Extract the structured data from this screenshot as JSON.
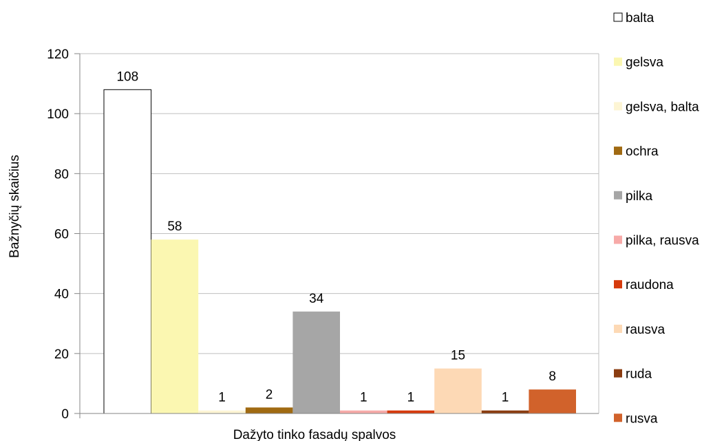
{
  "chart_data": {
    "type": "bar",
    "title": "",
    "xlabel": "Dažyto tinko fasadų spalvos",
    "ylabel": "Bažnyčių skaičius",
    "ylim": [
      0,
      120
    ],
    "yticks": [
      0,
      20,
      40,
      60,
      80,
      100,
      120
    ],
    "grid": true,
    "legend_position": "right",
    "series": [
      {
        "name": "balta",
        "value": 108,
        "color": "#ffffff"
      },
      {
        "name": "gelsva",
        "value": 58,
        "color": "#fbf7b1"
      },
      {
        "name": "gelsva, balta",
        "value": 1,
        "color": "#fdf5d4"
      },
      {
        "name": "ochra",
        "value": 2,
        "color": "#a06a12"
      },
      {
        "name": "pilka",
        "value": 34,
        "color": "#a6a6a6"
      },
      {
        "name": "pilka, rausva",
        "value": 1,
        "color": "#f7aaa8"
      },
      {
        "name": "raudona",
        "value": 1,
        "color": "#d63a0c"
      },
      {
        "name": "rausva",
        "value": 15,
        "color": "#fdd9b5"
      },
      {
        "name": "ruda",
        "value": 1,
        "color": "#8a3c10"
      },
      {
        "name": "rusva",
        "value": 8,
        "color": "#d1622b"
      }
    ]
  }
}
